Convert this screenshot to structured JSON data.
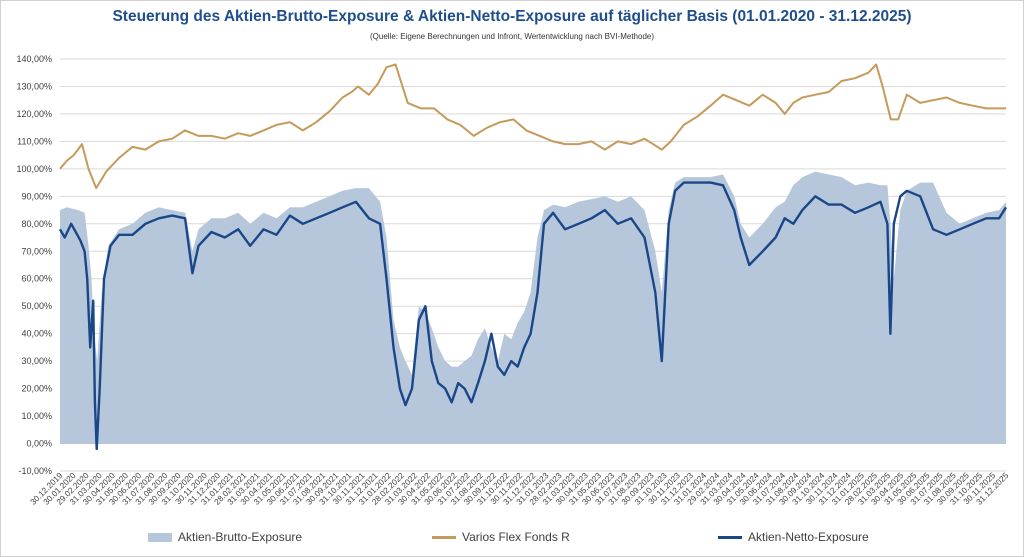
{
  "colors": {
    "gross": "#b6c7dc",
    "fund": "#c59a5a",
    "net": "#1a4787",
    "grid": "#d9d9d9",
    "title": "#1f4e8c"
  },
  "chart_data": {
    "type": "area+line",
    "title": "Steuerung des Aktien-Brutto-Exposure & Aktien-Netto-Exposure auf täglicher Basis (01.01.2020 - 31.12.2025)",
    "subtitle": "(Quelle: Eigene Berechnungen und Infront, Wertentwicklung nach BVI-Methode)",
    "ylim": [
      -10,
      140
    ],
    "yticks": [
      -10,
      0,
      10,
      20,
      30,
      40,
      50,
      60,
      70,
      80,
      90,
      100,
      110,
      120,
      130,
      140
    ],
    "ytick_labels": [
      "-10,00%",
      "0,00%",
      "10,00%",
      "20,00%",
      "30,00%",
      "40,00%",
      "50,00%",
      "60,00%",
      "70,00%",
      "80,00%",
      "90,00%",
      "100,00%",
      "110,00%",
      "120,00%",
      "130,00%",
      "140,00%"
    ],
    "xtick_labels": [
      "30.12.2019",
      "30.01.2020",
      "29.02.2020",
      "31.03.2020",
      "30.04.2020",
      "31.05.2020",
      "30.06.2020",
      "31.07.2020",
      "31.08.2020",
      "30.09.2020",
      "31.10.2020",
      "30.11.2020",
      "31.12.2020",
      "31.01.2021",
      "28.02.2021",
      "31.03.2021",
      "30.04.2021",
      "31.05.2021",
      "30.06.2021",
      "31.07.2021",
      "31.08.2021",
      "30.09.2021",
      "31.10.2021",
      "30.11.2021",
      "31.12.2021",
      "31.01.2022",
      "28.02.2022",
      "31.03.2022",
      "30.04.2022",
      "31.05.2022",
      "30.06.2022",
      "31.07.2022",
      "31.08.2022",
      "30.09.2022",
      "31.10.2022",
      "30.11.2022",
      "31.12.2022",
      "31.01.2023",
      "28.02.2023",
      "31.03.2023",
      "30.04.2023",
      "31.05.2023",
      "30.06.2023",
      "31.07.2023",
      "31.08.2023",
      "30.09.2023",
      "31.10.2023",
      "30.11.2023",
      "31.12.2023",
      "31.01.2024",
      "29.02.2024",
      "31.03.2024",
      "30.04.2024",
      "31.05.2024",
      "30.06.2024",
      "31.07.2024",
      "31.08.2024",
      "30.09.2024",
      "31.10.2024",
      "30.11.2024",
      "31.12.2024",
      "31.01.2025",
      "28.02.2025",
      "31.03.2025",
      "30.04.2025",
      "31.05.2025",
      "30.06.2025",
      "31.07.2025",
      "31.08.2025",
      "30.09.2025",
      "31.10.2025",
      "30.11.2025",
      "31.12.2025"
    ],
    "grid": true,
    "legend_position": "bottom",
    "series": [
      {
        "name": "Aktien-Brutto-Exposure",
        "kind": "area",
        "x": [
          "2019-12-30",
          "2020-01-15",
          "2020-02-10",
          "2020-02-25",
          "2020-03-05",
          "2020-03-12",
          "2020-03-18",
          "2020-03-25",
          "2020-04-05",
          "2020-04-20",
          "2020-05-15",
          "2020-06-15",
          "2020-07-15",
          "2020-08-15",
          "2020-09-15",
          "2020-10-15",
          "2020-11-01",
          "2020-11-15",
          "2020-12-15",
          "2021-01-15",
          "2021-02-15",
          "2021-03-15",
          "2021-04-15",
          "2021-05-15",
          "2021-06-15",
          "2021-07-15",
          "2021-08-15",
          "2021-09-15",
          "2021-10-15",
          "2021-11-15",
          "2021-12-15",
          "2022-01-10",
          "2022-01-25",
          "2022-02-10",
          "2022-02-25",
          "2022-03-10",
          "2022-03-25",
          "2022-04-10",
          "2022-04-25",
          "2022-05-10",
          "2022-05-25",
          "2022-06-10",
          "2022-06-25",
          "2022-07-10",
          "2022-07-25",
          "2022-08-10",
          "2022-08-25",
          "2022-09-10",
          "2022-09-25",
          "2022-10-10",
          "2022-10-25",
          "2022-11-10",
          "2022-11-25",
          "2022-12-10",
          "2022-12-25",
          "2023-01-10",
          "2023-01-25",
          "2023-02-15",
          "2023-03-15",
          "2023-04-15",
          "2023-05-15",
          "2023-06-15",
          "2023-07-15",
          "2023-08-15",
          "2023-09-15",
          "2023-10-10",
          "2023-10-25",
          "2023-11-10",
          "2023-11-25",
          "2023-12-15",
          "2024-01-15",
          "2024-02-15",
          "2024-03-15",
          "2024-04-10",
          "2024-04-25",
          "2024-05-15",
          "2024-06-15",
          "2024-07-15",
          "2024-08-05",
          "2024-08-25",
          "2024-09-15",
          "2024-10-15",
          "2024-11-15",
          "2024-12-15",
          "2025-01-15",
          "2025-02-15",
          "2025-03-15",
          "2025-03-31",
          "2025-04-07",
          "2025-04-15",
          "2025-04-30",
          "2025-05-15",
          "2025-06-15",
          "2025-07-15",
          "2025-08-15",
          "2025-09-15",
          "2025-10-15",
          "2025-11-15",
          "2025-12-15",
          "2025-12-31"
        ],
        "y": [
          85,
          86,
          85,
          84,
          72,
          60,
          40,
          30,
          55,
          72,
          78,
          80,
          84,
          86,
          85,
          84,
          70,
          78,
          82,
          82,
          84,
          80,
          84,
          82,
          86,
          86,
          88,
          90,
          92,
          93,
          93,
          88,
          75,
          45,
          35,
          30,
          25,
          50,
          48,
          42,
          35,
          30,
          28,
          28,
          30,
          32,
          38,
          42,
          35,
          30,
          40,
          38,
          44,
          48,
          55,
          75,
          85,
          87,
          86,
          88,
          89,
          90,
          88,
          90,
          85,
          70,
          55,
          85,
          95,
          97,
          97,
          97,
          98,
          90,
          80,
          75,
          80,
          86,
          88,
          94,
          97,
          99,
          98,
          97,
          94,
          95,
          94,
          94,
          80,
          60,
          85,
          92,
          95,
          95,
          84,
          80,
          82,
          84,
          85,
          88
        ]
      },
      {
        "name": "Varios Flex Fonds R",
        "kind": "line",
        "x": [
          "2019-12-30",
          "2020-01-15",
          "2020-01-31",
          "2020-02-19",
          "2020-03-05",
          "2020-03-23",
          "2020-04-15",
          "2020-05-15",
          "2020-06-15",
          "2020-07-15",
          "2020-08-15",
          "2020-09-15",
          "2020-10-15",
          "2020-11-15",
          "2020-12-15",
          "2021-01-15",
          "2021-02-15",
          "2021-03-15",
          "2021-04-15",
          "2021-05-15",
          "2021-06-15",
          "2021-07-15",
          "2021-08-15",
          "2021-09-15",
          "2021-10-15",
          "2021-11-05",
          "2021-11-20",
          "2021-12-15",
          "2022-01-05",
          "2022-01-25",
          "2022-02-15",
          "2022-03-15",
          "2022-04-15",
          "2022-05-15",
          "2022-06-15",
          "2022-07-15",
          "2022-08-15",
          "2022-09-15",
          "2022-10-15",
          "2022-11-15",
          "2022-12-15",
          "2023-01-15",
          "2023-02-15",
          "2023-03-15",
          "2023-04-15",
          "2023-05-15",
          "2023-06-15",
          "2023-07-15",
          "2023-08-15",
          "2023-09-15",
          "2023-10-25",
          "2023-11-15",
          "2023-12-15",
          "2024-01-15",
          "2024-02-15",
          "2024-03-15",
          "2024-04-15",
          "2024-05-15",
          "2024-06-15",
          "2024-07-15",
          "2024-08-05",
          "2024-08-25",
          "2024-09-15",
          "2024-10-15",
          "2024-11-15",
          "2024-12-15",
          "2025-01-15",
          "2025-02-15",
          "2025-03-05",
          "2025-03-20",
          "2025-04-08",
          "2025-04-25",
          "2025-05-15",
          "2025-06-15",
          "2025-07-15",
          "2025-08-15",
          "2025-09-15",
          "2025-10-15",
          "2025-11-15",
          "2025-12-15",
          "2025-12-31"
        ],
        "y": [
          100,
          103,
          105,
          109,
          100,
          93,
          99,
          104,
          108,
          107,
          110,
          111,
          114,
          112,
          112,
          111,
          113,
          112,
          114,
          116,
          117,
          114,
          117,
          121,
          126,
          128,
          130,
          127,
          131,
          137,
          138,
          124,
          122,
          122,
          118,
          116,
          112,
          115,
          117,
          118,
          114,
          112,
          110,
          109,
          109,
          110,
          107,
          110,
          109,
          111,
          107,
          110,
          116,
          119,
          123,
          127,
          125,
          123,
          127,
          124,
          120,
          124,
          126,
          127,
          128,
          132,
          133,
          135,
          138,
          130,
          118,
          118,
          127,
          124,
          125,
          126,
          124,
          123,
          122,
          122,
          122
        ]
      },
      {
        "name": "Aktien-Netto-Exposure",
        "kind": "line",
        "x": [
          "2019-12-30",
          "2020-01-10",
          "2020-01-25",
          "2020-02-15",
          "2020-02-25",
          "2020-03-02",
          "2020-03-09",
          "2020-03-16",
          "2020-03-20",
          "2020-03-24",
          "2020-03-31",
          "2020-04-10",
          "2020-04-25",
          "2020-05-15",
          "2020-06-15",
          "2020-07-15",
          "2020-08-15",
          "2020-09-15",
          "2020-10-15",
          "2020-11-01",
          "2020-11-15",
          "2020-12-15",
          "2021-01-15",
          "2021-02-15",
          "2021-03-15",
          "2021-04-15",
          "2021-05-15",
          "2021-06-15",
          "2021-07-15",
          "2021-08-15",
          "2021-09-15",
          "2021-10-15",
          "2021-11-15",
          "2021-12-15",
          "2022-01-10",
          "2022-01-25",
          "2022-02-10",
          "2022-02-25",
          "2022-03-10",
          "2022-03-25",
          "2022-04-10",
          "2022-04-25",
          "2022-05-10",
          "2022-05-25",
          "2022-06-10",
          "2022-06-25",
          "2022-07-10",
          "2022-07-25",
          "2022-08-10",
          "2022-08-25",
          "2022-09-10",
          "2022-09-25",
          "2022-10-10",
          "2022-10-25",
          "2022-11-10",
          "2022-11-25",
          "2022-12-10",
          "2022-12-25",
          "2023-01-10",
          "2023-01-25",
          "2023-02-15",
          "2023-03-15",
          "2023-04-15",
          "2023-05-15",
          "2023-06-15",
          "2023-07-15",
          "2023-08-15",
          "2023-09-15",
          "2023-10-10",
          "2023-10-25",
          "2023-11-10",
          "2023-11-25",
          "2023-12-15",
          "2024-01-15",
          "2024-02-15",
          "2024-03-15",
          "2024-04-10",
          "2024-04-25",
          "2024-05-15",
          "2024-06-15",
          "2024-07-15",
          "2024-08-05",
          "2024-08-25",
          "2024-09-15",
          "2024-10-15",
          "2024-11-15",
          "2024-12-15",
          "2025-01-15",
          "2025-02-15",
          "2025-03-15",
          "2025-03-31",
          "2025-04-07",
          "2025-04-15",
          "2025-04-30",
          "2025-05-15",
          "2025-06-15",
          "2025-07-15",
          "2025-08-15",
          "2025-09-15",
          "2025-10-15",
          "2025-11-15",
          "2025-12-15",
          "2025-12-31"
        ],
        "y": [
          78,
          75,
          80,
          74,
          70,
          60,
          35,
          52,
          15,
          -2,
          20,
          60,
          72,
          76,
          76,
          80,
          82,
          83,
          82,
          62,
          72,
          77,
          75,
          78,
          72,
          78,
          76,
          83,
          80,
          82,
          84,
          86,
          88,
          82,
          80,
          60,
          35,
          20,
          14,
          20,
          45,
          50,
          30,
          22,
          20,
          15,
          22,
          20,
          15,
          22,
          30,
          40,
          28,
          25,
          30,
          28,
          35,
          40,
          55,
          80,
          84,
          78,
          80,
          82,
          85,
          80,
          82,
          75,
          55,
          30,
          80,
          92,
          95,
          95,
          95,
          94,
          85,
          75,
          65,
          70,
          75,
          82,
          80,
          85,
          90,
          87,
          87,
          84,
          86,
          88,
          80,
          40,
          80,
          90,
          92,
          90,
          78,
          76,
          78,
          80,
          82,
          82,
          86
        ]
      }
    ]
  }
}
